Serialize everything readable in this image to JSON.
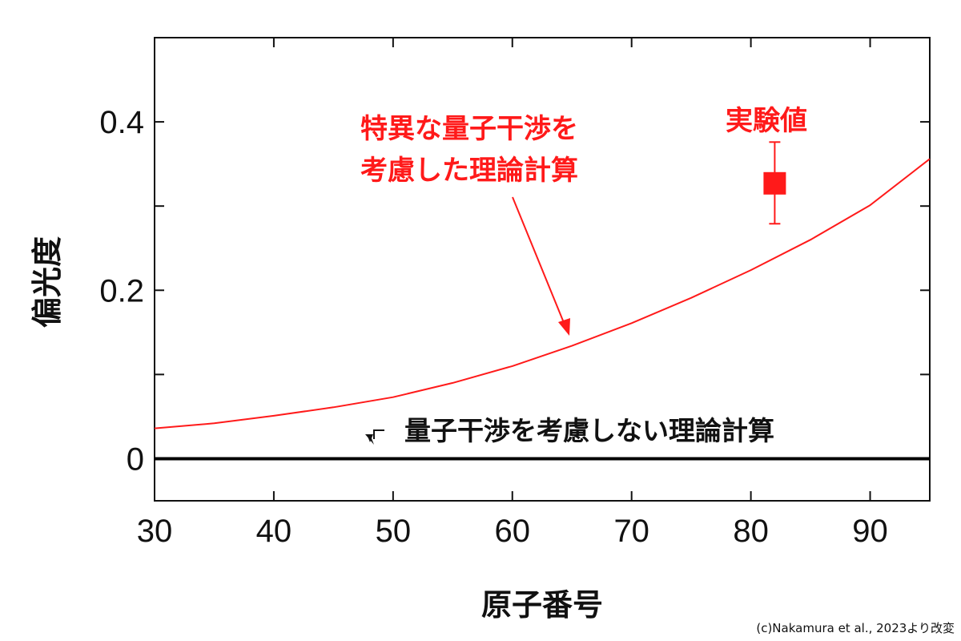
{
  "chart_data": {
    "type": "line",
    "xlabel": "原子番号",
    "ylabel": "偏光度",
    "xlim": [
      30,
      95
    ],
    "ylim": [
      -0.05,
      0.5
    ],
    "x_ticks": [
      30,
      40,
      50,
      60,
      70,
      80,
      90
    ],
    "x_tick_labels": [
      "30",
      "40",
      "50",
      "60",
      "70",
      "80",
      "90"
    ],
    "y_ticks": [
      0,
      0.2,
      0.4
    ],
    "y_tick_labels": [
      "0",
      "0.2",
      "0.4"
    ],
    "x_minor_ticks": [
      40,
      50,
      60,
      70,
      80,
      90
    ],
    "y_minor_ticks": [
      0.1,
      0.3
    ],
    "grid": false,
    "series": [
      {
        "color": "#ff1a1a",
        "x": [
          30,
          35,
          40,
          45,
          50,
          55,
          60,
          65,
          70,
          75,
          80,
          85,
          90,
          95
        ],
        "values": [
          0.036,
          0.042,
          0.051,
          0.061,
          0.073,
          0.09,
          0.11,
          0.134,
          0.161,
          0.191,
          0.224,
          0.26,
          0.301,
          0.356
        ]
      },
      {
        "color": "#000000",
        "x": [
          30,
          95
        ],
        "values": [
          0,
          0
        ]
      }
    ],
    "points": [
      {
        "x": 82,
        "y": 0.327,
        "err_low": 0.279,
        "err_high": 0.376,
        "color": "#ff1a1a"
      }
    ],
    "annotations": [
      {
        "text_lines": [
          "特異な量子干渉を",
          "考慮した理論計算"
        ],
        "color": "#ff1a1a"
      },
      {
        "text": "実験値",
        "color": "#ff1a1a"
      },
      {
        "text": "量子干渉を考慮しない理論計算",
        "color": "#000000"
      }
    ]
  },
  "credit": "(c)Nakamura et al., 2023より改変"
}
